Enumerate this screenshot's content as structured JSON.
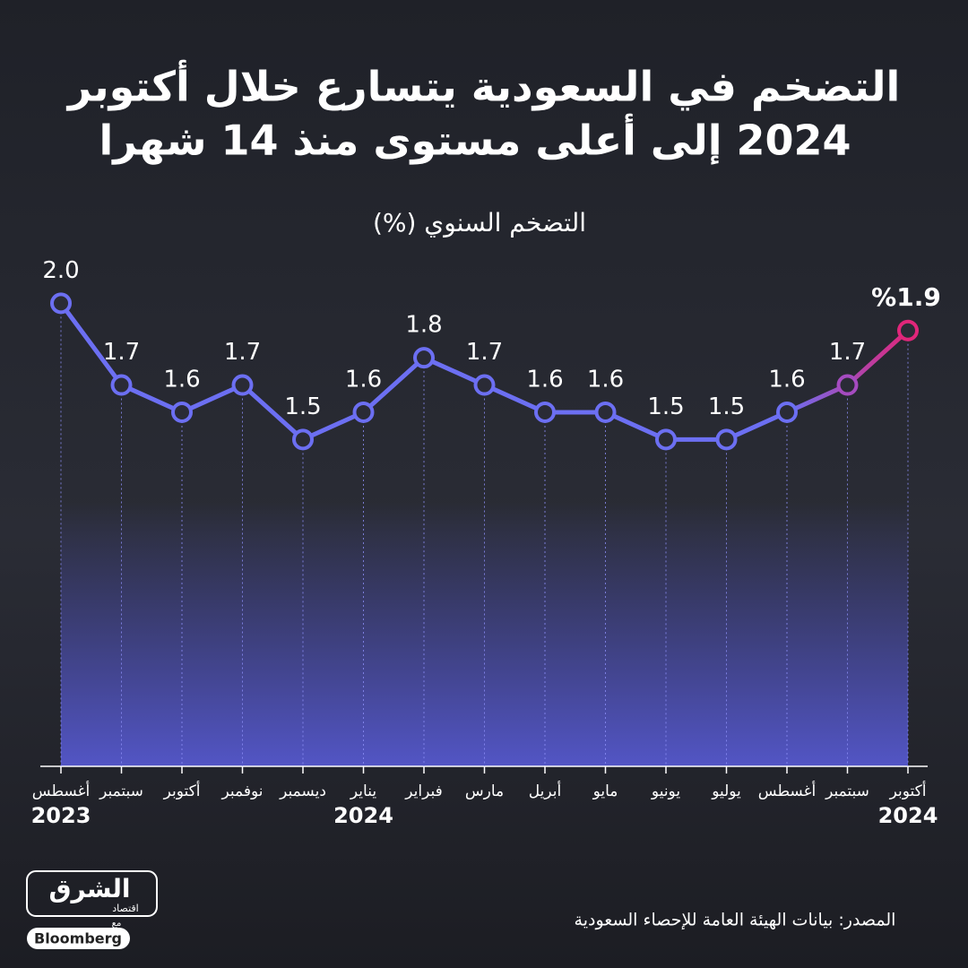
{
  "chart_data": {
    "type": "line",
    "title": [
      "التضخم في السعودية يتسارع خلال أكتوبر",
      "2024 إلى أعلى مستوى منذ 14 شهرا"
    ],
    "subtitle": "التضخم السنوي (%)",
    "categories": [
      "أغسطس",
      "سبتمبر",
      "أكتوبر",
      "نوفمبر",
      "ديسمبر",
      "يناير",
      "فبراير",
      "مارس",
      "أبريل",
      "مايو",
      "يونيو",
      "يوليو",
      "أغسطس",
      "سبتمبر",
      "أكتوبر"
    ],
    "category_years": [
      "2023",
      null,
      null,
      null,
      null,
      "2024",
      null,
      null,
      null,
      null,
      null,
      null,
      null,
      null,
      "2024"
    ],
    "values": [
      2.0,
      1.7,
      1.6,
      1.7,
      1.5,
      1.6,
      1.8,
      1.7,
      1.6,
      1.6,
      1.5,
      1.5,
      1.6,
      1.7,
      1.9
    ],
    "value_labels": [
      "2.0",
      "1.7",
      "1.6",
      "1.7",
      "1.5",
      "1.6",
      "1.8",
      "1.7",
      "1.6",
      "1.6",
      "1.5",
      "1.5",
      "1.6",
      "1.7",
      "%1.9"
    ],
    "color": "#6c6ff2",
    "highlight_color": "#e0267a",
    "ylim": [
      0.3,
      2.1
    ],
    "source": "المصدر: بيانات الهيئة العامة للإحصاء السعودية",
    "logo": {
      "name": "الشرق",
      "sub": "اقتصاد",
      "with": "مع",
      "partner": "Bloomberg"
    }
  }
}
